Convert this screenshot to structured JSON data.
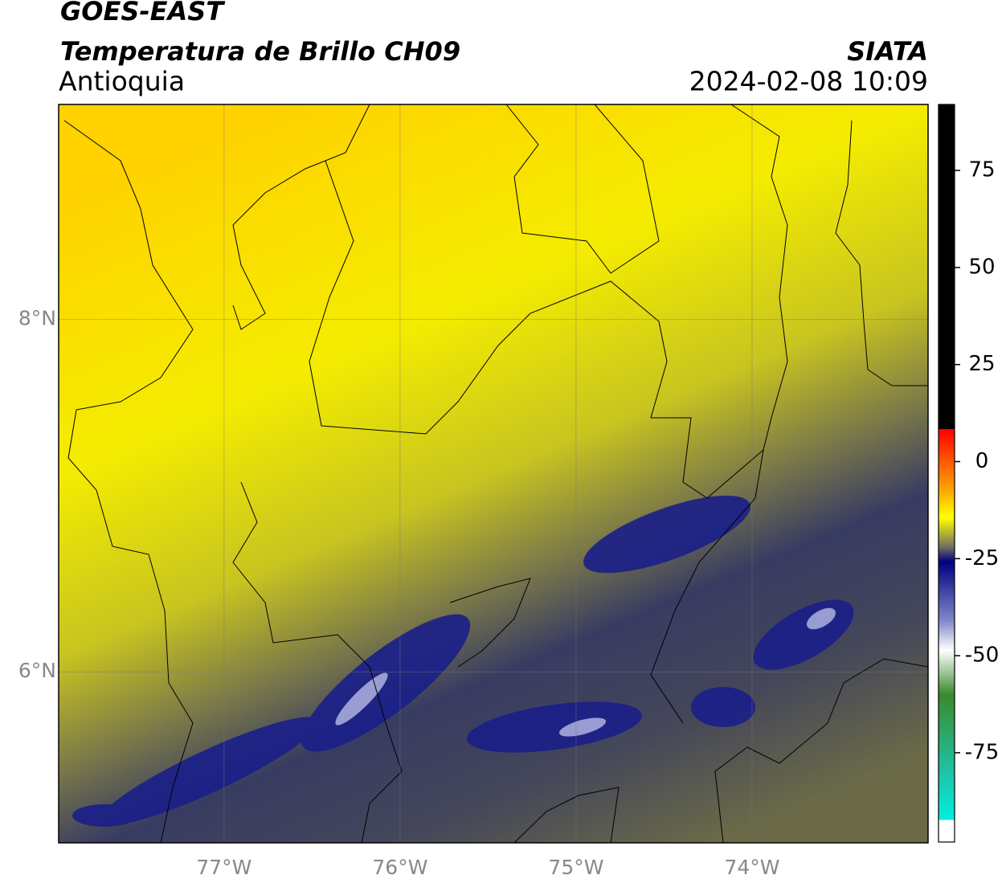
{
  "header": {
    "title": "GOES-EAST",
    "product": "Temperatura de Brillo CH09",
    "region": "Antioquia",
    "source": "SIATA",
    "datetime": "2024-02-08 10:09"
  },
  "map": {
    "xlim": [
      -77.94,
      -73.0
    ],
    "ylim": [
      5.03,
      9.22
    ],
    "xticks": [
      {
        "value": -77,
        "label": "77°W"
      },
      {
        "value": -76,
        "label": "76°W"
      },
      {
        "value": -75,
        "label": "75°W"
      },
      {
        "value": -74,
        "label": "74°W"
      }
    ],
    "yticks": [
      {
        "value": 6,
        "label": "6°N"
      },
      {
        "value": 8,
        "label": "8°N"
      }
    ],
    "grid": true
  },
  "colorbar": {
    "lim": [
      -98,
      92
    ],
    "ticks": [
      75,
      50,
      25,
      0,
      -25,
      -50,
      -75
    ]
  }
}
